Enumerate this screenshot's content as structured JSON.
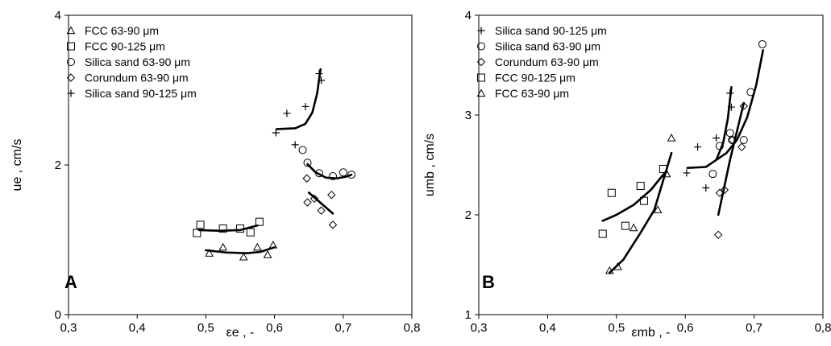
{
  "chart_data": [
    {
      "type": "scatter",
      "panel_label": "A",
      "xlabel": "εe , -",
      "ylabel": "ue , cm/s",
      "xlim": [
        0.3,
        0.8
      ],
      "ylim": [
        0,
        4
      ],
      "xticks": [
        "0,3",
        "0,4",
        "0,5",
        "0,6",
        "0,7",
        "0,8"
      ],
      "yticks": [
        "0",
        "2",
        "4"
      ],
      "legend_position": "top-left",
      "series": [
        {
          "name": "FCC 63-90 μm",
          "marker": "triangle",
          "x": [
            0.505,
            0.525,
            0.555,
            0.575,
            0.59,
            0.598
          ],
          "y": [
            0.82,
            0.9,
            0.77,
            0.9,
            0.8,
            0.93
          ],
          "fit_x": [
            0.5,
            0.53,
            0.56,
            0.58,
            0.6
          ],
          "fit_y": [
            0.86,
            0.83,
            0.82,
            0.84,
            0.9
          ]
        },
        {
          "name": "FCC 90-125 μm",
          "marker": "square",
          "x": [
            0.487,
            0.492,
            0.525,
            0.55,
            0.565,
            0.578
          ],
          "y": [
            1.09,
            1.2,
            1.15,
            1.15,
            1.1,
            1.24
          ],
          "fit_x": [
            0.49,
            0.52,
            0.55,
            0.575
          ],
          "fit_y": [
            1.13,
            1.12,
            1.13,
            1.19
          ]
        },
        {
          "name": "Silica sand 63-90 μm",
          "marker": "circle",
          "x": [
            0.641,
            0.648,
            0.665,
            0.685,
            0.7,
            0.712
          ],
          "y": [
            2.2,
            2.03,
            1.89,
            1.85,
            1.9,
            1.87
          ],
          "fit_x": [
            0.648,
            0.66,
            0.675,
            0.69,
            0.703,
            0.712
          ],
          "fit_y": [
            2.01,
            1.9,
            1.83,
            1.82,
            1.84,
            1.87
          ]
        },
        {
          "name": "Corundum 63-90 μm",
          "marker": "diamond",
          "x": [
            0.647,
            0.648,
            0.658,
            0.668,
            0.683,
            0.685
          ],
          "y": [
            1.82,
            1.5,
            1.55,
            1.39,
            1.6,
            1.2
          ],
          "fit_x": [
            0.65,
            0.685
          ],
          "fit_y": [
            1.63,
            1.35
          ]
        },
        {
          "name": "Silica sand 90-125 μm",
          "marker": "plus",
          "x": [
            0.602,
            0.618,
            0.63,
            0.645,
            0.665,
            0.668
          ],
          "y": [
            2.43,
            2.69,
            2.27,
            2.78,
            3.22,
            3.13
          ],
          "fit_x": [
            0.603,
            0.63,
            0.645,
            0.655,
            0.662,
            0.667
          ],
          "fit_y": [
            2.48,
            2.49,
            2.55,
            2.7,
            2.95,
            3.28
          ]
        }
      ]
    },
    {
      "type": "scatter",
      "panel_label": "B",
      "xlabel": "εmb , -",
      "ylabel": "umb , cm/s",
      "xlim": [
        0.3,
        0.8
      ],
      "ylim": [
        1,
        4
      ],
      "xticks": [
        "0,3",
        "0,4",
        "0,5",
        "0,6",
        "0,7",
        "0,8"
      ],
      "yticks": [
        "1",
        "2",
        "3",
        "4"
      ],
      "legend_position": "top-left",
      "series": [
        {
          "name": "Silica sand 90-125 μm",
          "marker": "plus",
          "x": [
            0.602,
            0.618,
            0.63,
            0.645,
            0.665,
            0.667
          ],
          "y": [
            2.42,
            2.68,
            2.27,
            2.77,
            3.22,
            3.08
          ],
          "fit_x": [
            0.603,
            0.63,
            0.645,
            0.655,
            0.662,
            0.667
          ],
          "fit_y": [
            2.47,
            2.48,
            2.55,
            2.72,
            2.97,
            3.28
          ]
        },
        {
          "name": "Silica sand 63-90 μm",
          "marker": "circle",
          "x": [
            0.64,
            0.65,
            0.665,
            0.668,
            0.685,
            0.695,
            0.712
          ],
          "y": [
            2.41,
            2.69,
            2.82,
            2.75,
            2.75,
            3.23,
            3.71
          ],
          "fit_x": [
            0.645,
            0.66,
            0.675,
            0.69,
            0.703,
            0.713
          ],
          "fit_y": [
            2.55,
            2.62,
            2.75,
            2.98,
            3.3,
            3.65
          ]
        },
        {
          "name": "Corundum 63-90 μm",
          "marker": "diamond",
          "x": [
            0.648,
            0.65,
            0.657,
            0.668,
            0.682,
            0.685
          ],
          "y": [
            1.8,
            2.22,
            2.25,
            2.75,
            2.68,
            3.09
          ],
          "fit_x": [
            0.648,
            0.665,
            0.685
          ],
          "fit_y": [
            2.0,
            2.55,
            3.12
          ]
        },
        {
          "name": "FCC 90-125 μm",
          "marker": "square",
          "x": [
            0.48,
            0.493,
            0.513,
            0.535,
            0.54,
            0.568
          ],
          "y": [
            1.81,
            2.22,
            1.89,
            2.29,
            2.14,
            2.46
          ],
          "fit_x": [
            0.48,
            0.5,
            0.525,
            0.55,
            0.57
          ],
          "fit_y": [
            1.94,
            2.0,
            2.1,
            2.25,
            2.42
          ]
        },
        {
          "name": "FCC 63-90 μm",
          "marker": "triangle",
          "x": [
            0.49,
            0.502,
            0.525,
            0.56,
            0.573,
            0.58
          ],
          "y": [
            1.44,
            1.48,
            1.87,
            2.05,
            2.41,
            2.77
          ],
          "fit_x": [
            0.49,
            0.51,
            0.535,
            0.555,
            0.58
          ],
          "fit_y": [
            1.42,
            1.55,
            1.82,
            2.05,
            2.62
          ]
        }
      ]
    }
  ]
}
